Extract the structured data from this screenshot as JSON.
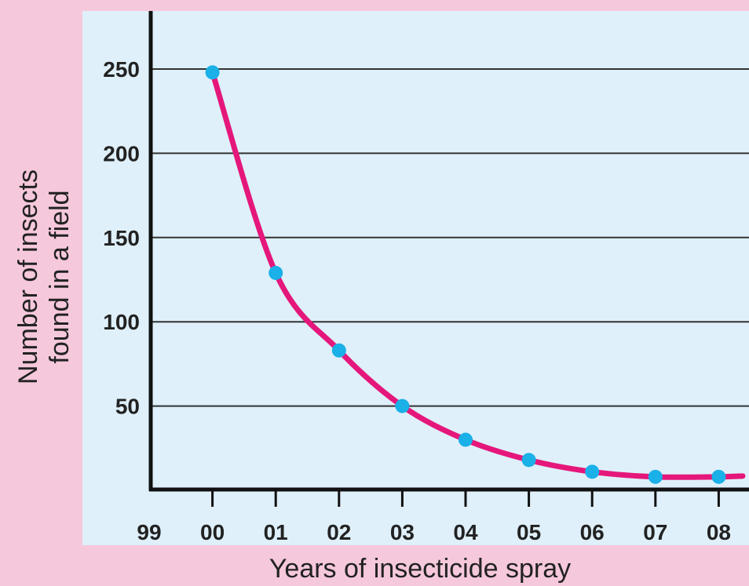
{
  "chart_data": {
    "type": "line",
    "title": "",
    "xlabel": "Years of insecticide spray",
    "ylabel_lines": [
      "Number of insects",
      "found in a field"
    ],
    "x_ticks": [
      "99",
      "00",
      "01",
      "02",
      "03",
      "04",
      "05",
      "06",
      "07",
      "08"
    ],
    "y_ticks": [
      50,
      100,
      150,
      200,
      250
    ],
    "ylim": [
      0,
      280
    ],
    "grid": true,
    "x": [
      "00",
      "01",
      "02",
      "03",
      "04",
      "05",
      "06",
      "07",
      "08"
    ],
    "values": [
      248,
      129,
      83,
      50,
      30,
      18,
      11,
      8,
      8
    ],
    "colors": {
      "plot_background": "#dff0fa",
      "page_background": "#f6c8dc",
      "line": "#e5177b",
      "points": "#1ab0e8",
      "grid": "#333333",
      "axis": "#111111"
    }
  }
}
